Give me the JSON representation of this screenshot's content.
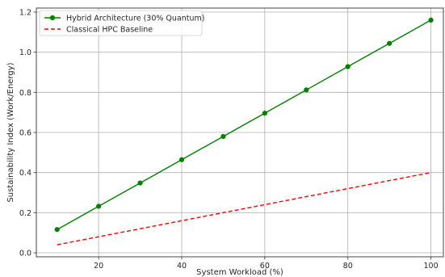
{
  "chart_data": {
    "type": "line",
    "title": "",
    "xlabel": "System Workload (%)",
    "ylabel": "Sustainability Index (Work/Energy)",
    "xlim": [
      5,
      103
    ],
    "ylim": [
      -0.02,
      1.22
    ],
    "xticks": [
      20,
      40,
      60,
      80,
      100
    ],
    "yticks": [
      0.0,
      0.2,
      0.4,
      0.6,
      0.8,
      1.0,
      1.2
    ],
    "grid": true,
    "legend_position": "top-left",
    "x": [
      10,
      20,
      30,
      40,
      50,
      60,
      70,
      80,
      90,
      100
    ],
    "series": [
      {
        "name": "Hybrid Architecture (30% Quantum)",
        "values": [
          0.116,
          0.232,
          0.348,
          0.464,
          0.58,
          0.696,
          0.812,
          0.928,
          1.044,
          1.16
        ],
        "color": "#008000",
        "line_style": "solid",
        "marker": "circle"
      },
      {
        "name": "Classical HPC Baseline",
        "values": [
          0.04,
          0.08,
          0.12,
          0.16,
          0.2,
          0.24,
          0.28,
          0.32,
          0.36,
          0.4
        ],
        "color": "#ff0000",
        "line_style": "dashed",
        "marker": "none"
      }
    ]
  }
}
